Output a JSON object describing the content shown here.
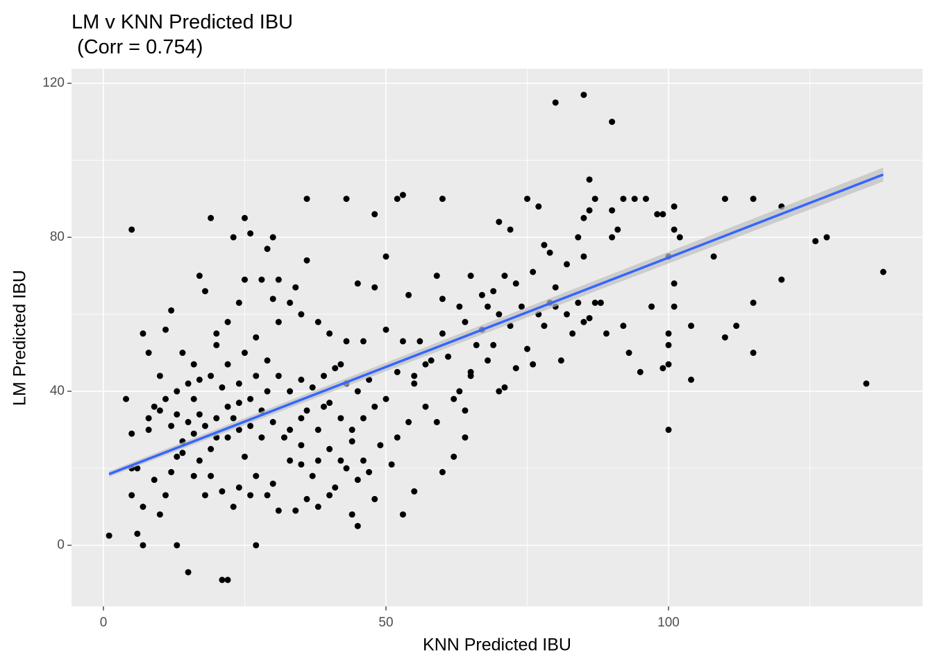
{
  "chart_data": {
    "type": "scatter",
    "title": "LM v KNN Predicted IBU\n (Corr = 0.754)",
    "x_label": "KNN Predicted IBU",
    "y_label": "LM Predicted IBU",
    "xlim": [
      -5.65,
      144.96
    ],
    "ylim": [
      -15.86,
      123.8
    ],
    "xticks": [
      0,
      50,
      100
    ],
    "yticks": [
      0,
      40,
      80,
      120
    ],
    "x_minor_grid": [
      25,
      75,
      125
    ],
    "y_minor_grid": [
      20,
      60,
      100
    ],
    "grid": true,
    "series": [
      {
        "color": "#000000",
        "x": [
          1,
          5,
          6,
          7,
          4,
          13,
          15,
          21,
          22,
          27,
          19,
          25,
          36,
          43,
          52,
          53,
          60,
          80,
          85,
          90,
          86,
          138,
          135,
          128,
          126,
          120,
          120,
          115,
          115,
          115,
          110,
          112,
          110,
          108,
          100,
          104,
          104,
          101,
          100,
          100,
          99,
          98,
          95,
          97,
          88,
          90,
          92,
          94,
          85,
          85,
          80,
          75,
          77,
          70,
          72,
          65,
          60,
          59,
          62,
          60,
          55,
          53,
          45,
          45,
          48,
          48,
          42,
          50,
          50,
          54,
          58,
          56,
          65,
          68,
          70,
          72,
          78,
          82,
          88,
          92,
          93,
          46,
          44,
          40,
          38,
          35,
          33,
          30,
          28,
          26,
          24,
          22,
          20,
          18,
          16,
          14,
          12,
          10,
          8,
          6,
          9,
          11,
          7,
          10,
          12,
          14,
          17,
          19,
          21,
          23,
          25,
          27,
          29,
          31,
          33,
          35,
          37,
          34,
          38,
          41,
          43,
          46,
          49,
          51,
          48,
          31,
          33,
          35,
          37,
          39,
          41,
          43,
          45,
          47,
          29,
          27,
          24,
          21,
          19,
          17,
          15,
          13,
          11,
          10,
          25,
          27,
          29,
          31,
          33,
          35,
          36,
          34,
          30,
          28,
          25,
          24,
          22,
          20,
          18,
          17,
          12,
          11,
          7,
          26,
          29,
          30,
          23,
          31,
          38,
          40,
          43,
          46,
          52,
          53,
          55,
          57,
          60,
          61,
          63,
          65,
          66,
          67,
          69,
          70,
          71,
          73,
          75,
          76,
          77,
          79,
          80,
          81,
          83,
          84,
          86,
          87,
          89,
          63,
          64,
          67,
          68,
          69,
          71,
          73,
          74,
          76,
          78,
          79,
          82,
          84,
          85,
          86,
          87,
          90,
          99,
          101,
          96,
          102,
          101,
          101,
          100,
          100,
          97,
          91,
          55,
          57,
          59,
          62,
          64,
          64,
          54,
          52,
          50,
          48,
          44,
          42,
          39,
          36,
          32,
          28,
          26,
          23,
          20,
          19,
          17,
          15,
          13,
          22,
          24,
          16,
          35,
          40,
          42,
          45,
          38,
          22,
          20,
          16,
          14,
          8,
          5,
          5,
          5,
          8,
          9,
          13,
          16,
          18,
          24,
          26,
          30,
          36,
          40,
          47,
          44
        ],
        "values": [
          2.5,
          82,
          3,
          0,
          38,
          0,
          -7,
          -9,
          -9,
          0,
          85,
          85,
          90,
          90,
          90,
          91,
          90,
          115,
          117,
          110,
          95,
          71,
          42,
          80,
          79,
          88,
          69,
          90,
          63,
          50,
          90,
          57,
          54,
          75,
          30,
          43,
          57,
          88,
          75,
          47,
          46,
          86,
          45,
          62,
          63,
          87,
          90,
          90,
          75,
          58,
          62,
          90,
          88,
          84,
          82,
          70,
          64,
          70,
          23,
          19,
          14,
          8,
          5,
          68,
          86,
          67,
          47,
          75,
          56,
          65,
          48,
          53,
          45,
          48,
          60,
          57,
          57,
          60,
          63,
          57,
          50,
          33,
          27,
          37,
          30,
          33,
          30,
          32,
          35,
          38,
          30,
          28,
          33,
          31,
          29,
          27,
          31,
          35,
          30,
          20,
          17,
          13,
          10,
          8,
          19,
          24,
          22,
          18,
          14,
          10,
          23,
          18,
          13,
          9,
          22,
          26,
          18,
          9,
          10,
          15,
          20,
          22,
          26,
          21,
          12,
          44,
          40,
          43,
          41,
          44,
          46,
          42,
          40,
          43,
          40,
          44,
          42,
          41,
          44,
          43,
          42,
          40,
          38,
          44,
          50,
          54,
          48,
          58,
          63,
          60,
          74,
          67,
          64,
          69,
          69,
          63,
          58,
          55,
          66,
          70,
          61,
          56,
          55,
          81,
          77,
          80,
          80,
          69,
          58,
          55,
          53,
          53,
          45,
          53,
          44,
          47,
          55,
          49,
          40,
          44,
          52,
          56,
          52,
          40,
          41,
          46,
          51,
          47,
          60,
          63,
          67,
          48,
          55,
          63,
          59,
          63,
          55,
          62,
          58,
          65,
          62,
          66,
          70,
          68,
          62,
          71,
          78,
          76,
          73,
          80,
          85,
          87,
          90,
          80,
          86,
          82,
          90,
          80,
          68,
          62,
          52,
          55,
          62,
          82,
          42,
          36,
          32,
          38,
          28,
          35,
          32,
          28,
          38,
          36,
          30,
          33,
          36,
          35,
          28,
          28,
          31,
          33,
          28,
          25,
          34,
          32,
          34,
          36,
          37,
          38,
          21,
          25,
          22,
          17,
          22,
          47,
          52,
          47,
          50,
          50,
          29,
          20,
          13,
          33,
          36,
          23,
          18,
          13,
          15,
          13,
          16,
          12,
          13,
          19,
          8
        ]
      }
    ],
    "fit": {
      "color": "#3366ff",
      "band_color": "#bfbfbf",
      "x": [
        1,
        138
      ],
      "values": [
        18.5,
        96.3
      ]
    }
  }
}
